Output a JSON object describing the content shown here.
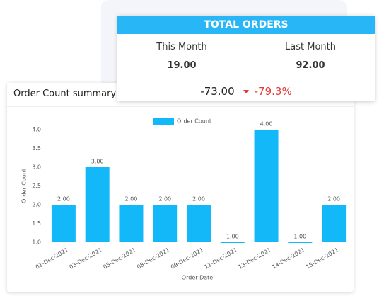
{
  "kpi": {
    "title": "TOTAL ORDERS",
    "this_month_label": "This Month",
    "last_month_label": "Last Month",
    "this_month_value": "19.00",
    "last_month_value": "92.00",
    "difference": "-73.00",
    "change": "-79.3%"
  },
  "chart_data": {
    "type": "bar",
    "title": "Order Count summary",
    "x_label": "Order Date",
    "y_label": "Order Count",
    "categories": [
      "01-Dec-2021",
      "03-Dec-2021",
      "05-Dec-2021",
      "08-Dec-2021",
      "09-Dec-2021",
      "11-Dec-2021",
      "13-Dec-2021",
      "14-Dec-2021",
      "15-Dec-2021"
    ],
    "series": [
      {
        "name": "Order Count",
        "color": "#12b8f8",
        "values": [
          2,
          3,
          2,
          2,
          2,
          1,
          4,
          1,
          2
        ],
        "value_labels": [
          "2.00",
          "3.00",
          "2.00",
          "2.00",
          "2.00",
          "1.00",
          "4.00",
          "1.00",
          "2.00"
        ]
      }
    ],
    "ylim": [
      1,
      4
    ],
    "yticks": [
      {
        "value": 1,
        "label": "1.0"
      },
      {
        "value": 1.5,
        "label": "1.5"
      },
      {
        "value": 2,
        "label": "2.0"
      },
      {
        "value": 2.5,
        "label": "2.5"
      },
      {
        "value": 3,
        "label": "3.0"
      },
      {
        "value": 3.5,
        "label": "3.5"
      },
      {
        "value": 4,
        "label": "4.0"
      }
    ],
    "legend": "top"
  }
}
